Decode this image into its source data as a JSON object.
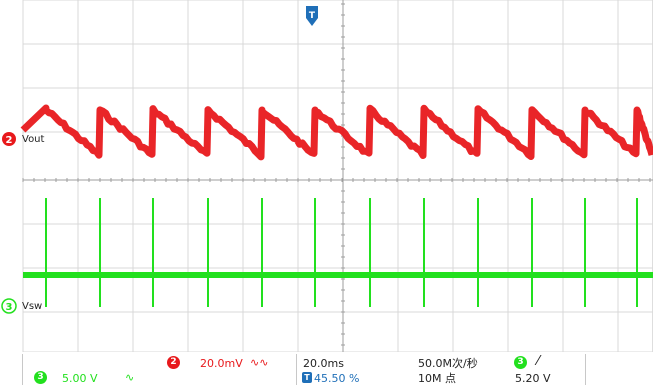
{
  "colors": {
    "background": "#ffffff",
    "grid": "#cccccc",
    "ch2": "#e8191c",
    "ch3": "#22e01e",
    "marker_blue": "#1f6fb8"
  },
  "channels": {
    "ch2": {
      "number": "2",
      "label": "Vout",
      "scale": "20.0mV",
      "coupling_icon": "∿∿",
      "waveform": "sawtooth"
    },
    "ch3": {
      "number": "3",
      "label": "Vsw",
      "scale": "5.00 V",
      "coupling_icon": "∿",
      "waveform": "pulse"
    }
  },
  "trigger_position_marker": {
    "icon": "trigger-position-icon",
    "label": "T"
  },
  "timebase": {
    "scale": "20.0ms",
    "trigger_position_label": "T",
    "trigger_position": "45.50 %",
    "sample_rate": "50.0M次/秒",
    "record_length": "10M 点"
  },
  "trigger": {
    "source_channel": "3",
    "slope_icon": "rising-edge-icon",
    "slope_glyph": "⁄",
    "level": "5.20 V"
  }
}
